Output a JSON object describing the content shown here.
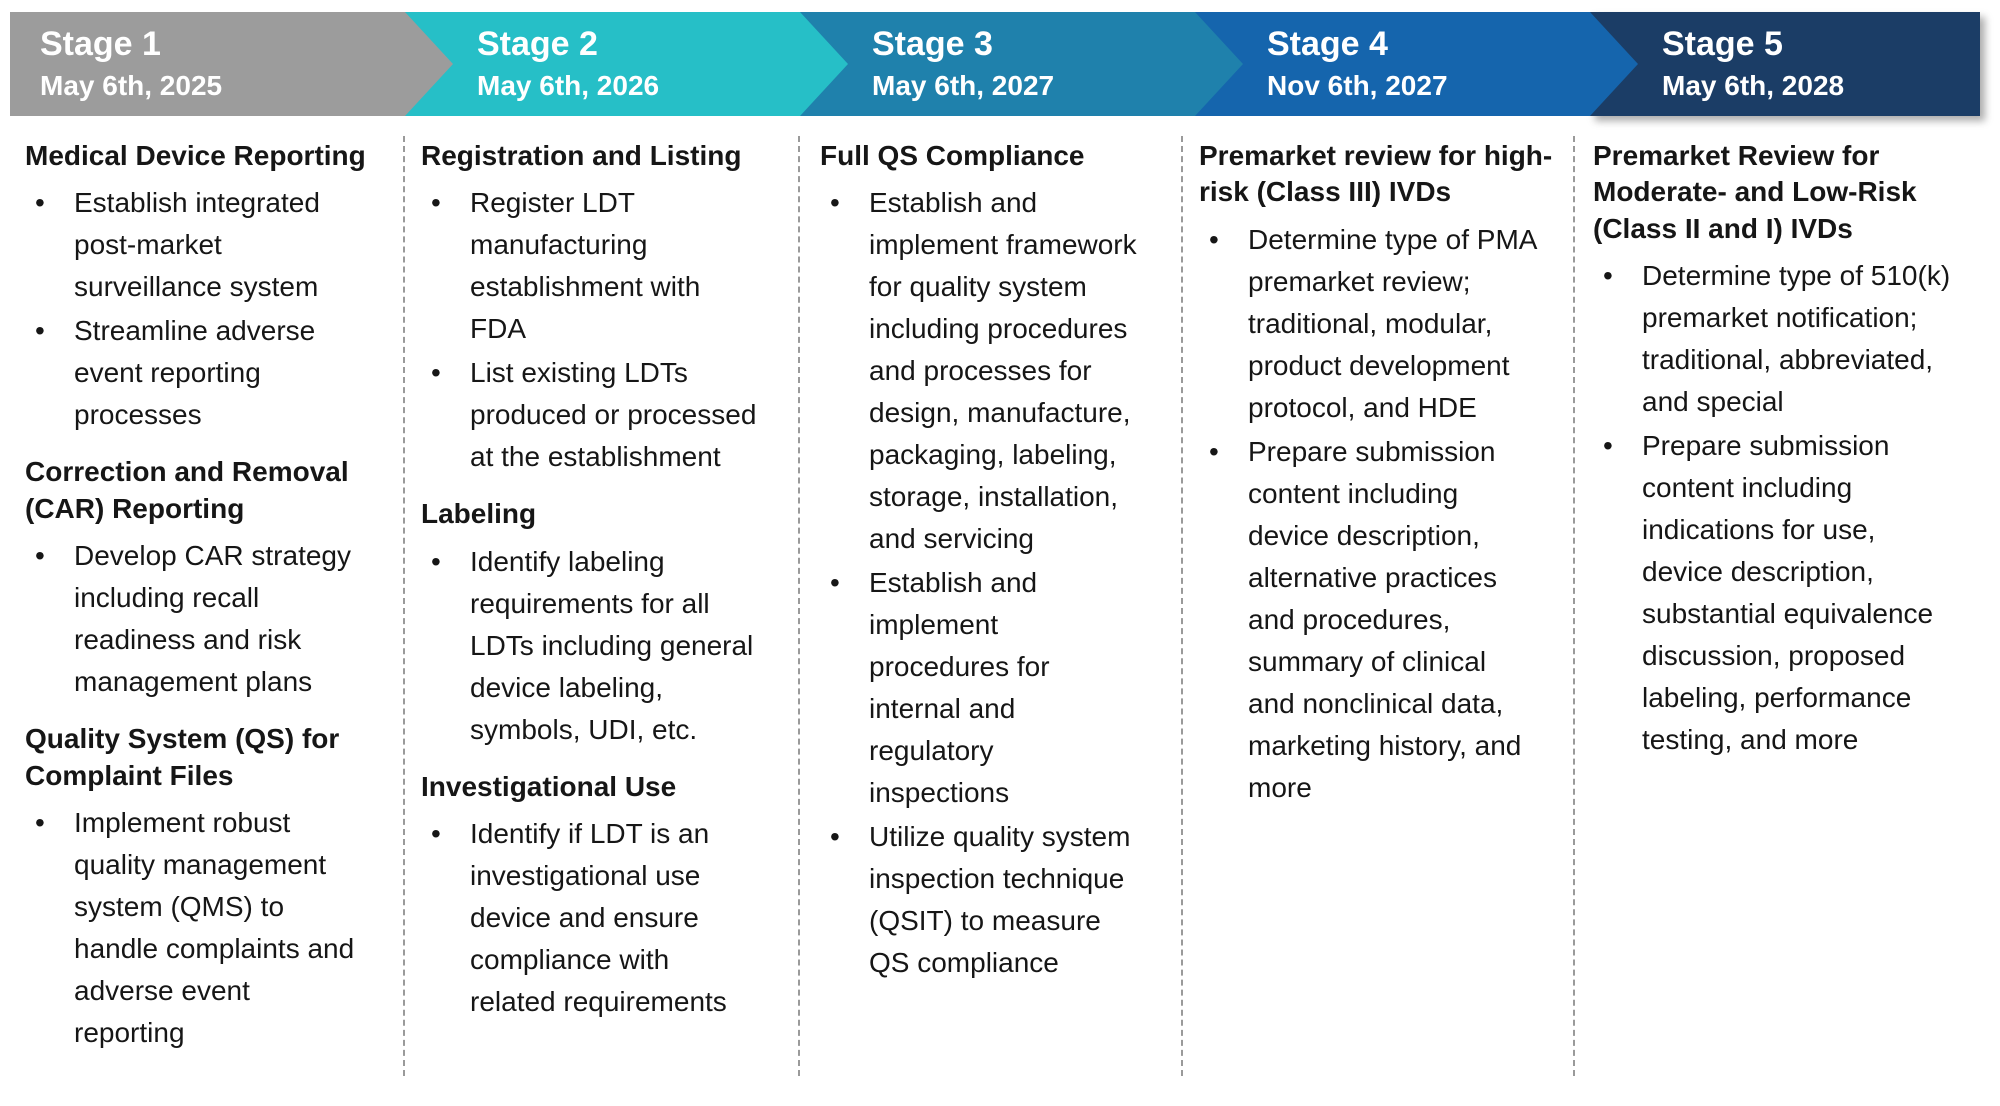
{
  "stages": [
    {
      "label": "Stage 1",
      "date": "May 6th, 2025",
      "color": "#9C9C9C"
    },
    {
      "label": "Stage 2",
      "date": "May 6th, 2026",
      "color": "#26BFC7"
    },
    {
      "label": "Stage 3",
      "date": "May 6th, 2027",
      "color": "#1F81AC"
    },
    {
      "label": "Stage 4",
      "date": "Nov 6th, 2027",
      "color": "#1565AD"
    },
    {
      "label": "Stage 5",
      "date": "May 6th, 2028",
      "color": "#1B3D66"
    }
  ],
  "columns": [
    {
      "stage": "Stage 1",
      "sections": [
        {
          "heading": "Medical Device Reporting",
          "bullets": [
            "Establish integrated post-market surveillance system",
            "Streamline adverse event reporting processes"
          ]
        },
        {
          "heading": "Correction and Removal (CAR) Reporting",
          "bullets": [
            "Develop CAR strategy including recall readiness and risk management plans"
          ]
        },
        {
          "heading": "Quality System (QS) for Complaint Files",
          "bullets": [
            "Implement robust quality management system (QMS) to handle complaints and adverse event reporting"
          ]
        }
      ]
    },
    {
      "stage": "Stage 2",
      "sections": [
        {
          "heading": "Registration and Listing",
          "bullets": [
            "Register LDT manufacturing establishment with FDA",
            "List existing LDTs produced or processed at the establishment"
          ]
        },
        {
          "heading": "Labeling",
          "bullets": [
            "Identify labeling requirements for all LDTs including general device labeling, symbols, UDI, etc."
          ]
        },
        {
          "heading": "Investigational Use",
          "bullets": [
            "Identify if LDT is an investigational use device and ensure compliance with related requirements"
          ]
        }
      ]
    },
    {
      "stage": "Stage 3",
      "sections": [
        {
          "heading": "Full QS Compliance",
          "bullets": [
            "Establish and implement framework for quality system including procedures and processes for design, manufacture, packaging, labeling, storage, installation, and servicing",
            "Establish and implement procedures for internal and regulatory inspections",
            "Utilize quality system inspection technique (QSIT) to measure QS compliance"
          ]
        }
      ]
    },
    {
      "stage": "Stage 4",
      "sections": [
        {
          "heading": "Premarket review for high-risk (Class III) IVDs",
          "bullets": [
            "Determine type of PMA premarket review; traditional, modular, product development protocol, and HDE",
            "Prepare submission content including device description, alternative practices and procedures, summary of clinical and nonclinical data, marketing history, and more"
          ]
        }
      ]
    },
    {
      "stage": "Stage 5",
      "sections": [
        {
          "heading": "Premarket Review for Moderate- and Low-Risk (Class II and I) IVDs",
          "bullets": [
            "Determine type of 510(k) premarket notification; traditional, abbreviated, and special",
            "Prepare submission content including indications for use, device description, substantial equivalence discussion, proposed labeling, performance testing, and more"
          ]
        }
      ]
    }
  ]
}
